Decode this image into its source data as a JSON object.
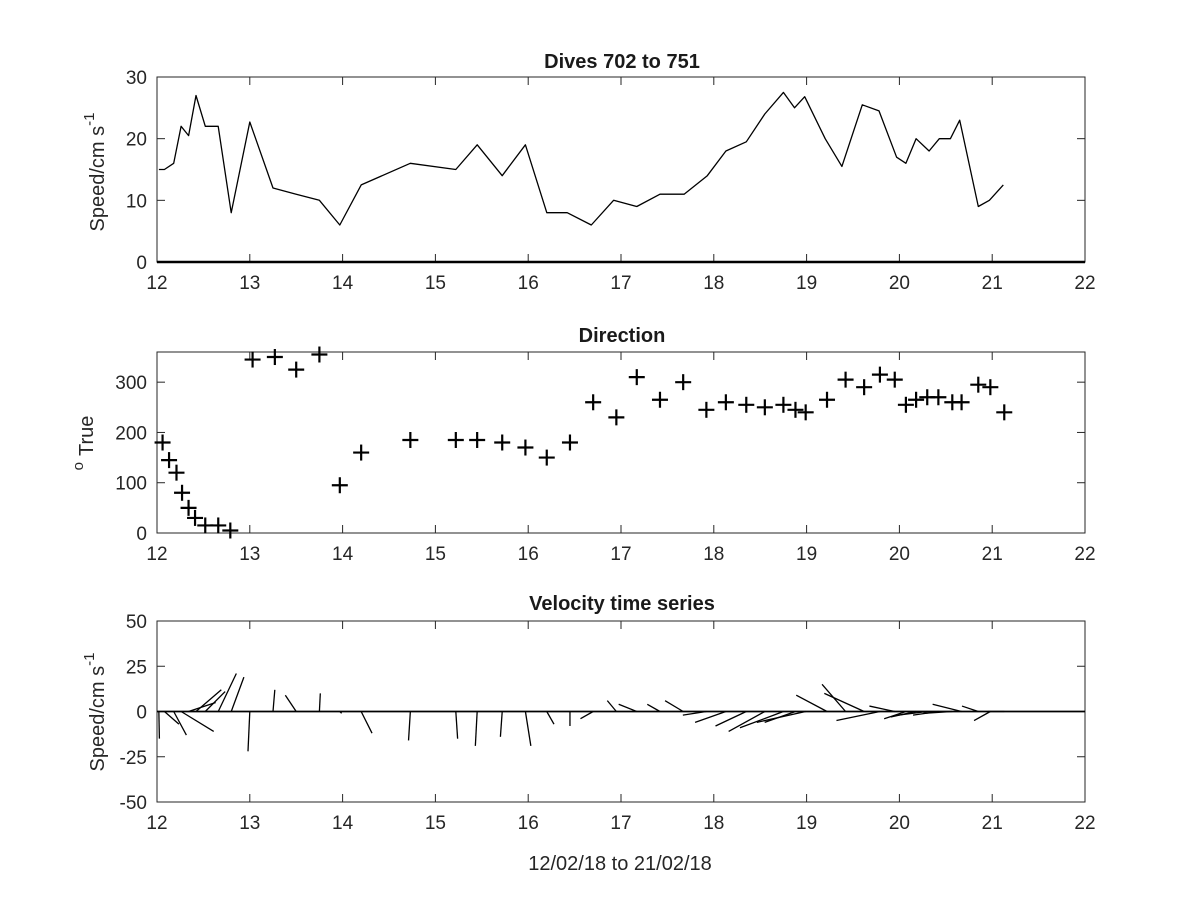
{
  "chart_data": [
    {
      "type": "line",
      "title": "Dives 702 to 751",
      "xlabel": "",
      "ylabel": "Speed/cm s",
      "ylabel_superscript": "-1",
      "xlim": [
        12,
        22
      ],
      "ylim": [
        0,
        30
      ],
      "xticks": [
        "12",
        "13",
        "14",
        "15",
        "16",
        "17",
        "18",
        "19",
        "20",
        "21",
        "22"
      ],
      "yticks": [
        "0",
        "10",
        "20",
        "30"
      ],
      "grid": false,
      "x": [
        12.02,
        12.08,
        12.18,
        12.26,
        12.34,
        12.42,
        12.52,
        12.66,
        12.8,
        13.0,
        13.25,
        13.5,
        13.75,
        13.97,
        14.2,
        14.73,
        15.22,
        15.45,
        15.72,
        15.97,
        16.2,
        16.42,
        16.68,
        16.92,
        17.17,
        17.42,
        17.68,
        17.93,
        18.13,
        18.35,
        18.55,
        18.75,
        18.87,
        18.98,
        19.2,
        19.38,
        19.6,
        19.78,
        19.97,
        20.07,
        20.18,
        20.32,
        20.43,
        20.55,
        20.65,
        20.85,
        20.97,
        21.12
      ],
      "series": [
        {
          "values": [
            15.0,
            15.0,
            16.0,
            22.0,
            20.5,
            27.0,
            22.0,
            22.0,
            8.0,
            22.7,
            12.0,
            11.0,
            10.0,
            6.0,
            12.5,
            16.0,
            15.0,
            19.0,
            14.0,
            19.0,
            8.0,
            8.0,
            6.0,
            10.0,
            9.0,
            11.0,
            11.0,
            14.0,
            18.0,
            19.5,
            24.0,
            27.5,
            25.0,
            26.8,
            20.0,
            15.5,
            25.5,
            24.5,
            17.0,
            16.0,
            20.0,
            18.0,
            20.0,
            20.0,
            23.0,
            9.0,
            10.0,
            12.5
          ]
        }
      ]
    },
    {
      "type": "scatter",
      "title": "Direction",
      "xlabel": "",
      "ylabel": "True",
      "ylabel_prefix_superscript": "o",
      "xlim": [
        12,
        22
      ],
      "ylim": [
        0,
        360
      ],
      "xticks": [
        "12",
        "13",
        "14",
        "15",
        "16",
        "17",
        "18",
        "19",
        "20",
        "21",
        "22"
      ],
      "yticks": [
        "0",
        "100",
        "200",
        "300"
      ],
      "grid": false,
      "marker": "+",
      "x": [
        12.06,
        12.13,
        12.21,
        12.27,
        12.34,
        12.41,
        12.52,
        12.66,
        12.79,
        13.03,
        13.27,
        13.5,
        13.75,
        13.97,
        14.2,
        14.73,
        15.22,
        15.45,
        15.72,
        15.97,
        16.2,
        16.45,
        16.7,
        16.95,
        17.17,
        17.42,
        17.67,
        17.92,
        18.13,
        18.35,
        18.55,
        18.75,
        18.88,
        18.99,
        19.22,
        19.42,
        19.62,
        19.79,
        19.95,
        20.07,
        20.18,
        20.3,
        20.42,
        20.57,
        20.67,
        20.85,
        20.98,
        21.13
      ],
      "y": [
        180,
        145,
        120,
        80,
        50,
        30,
        15,
        15,
        5,
        345,
        350,
        325,
        355,
        95,
        160,
        185,
        185,
        185,
        180,
        170,
        150,
        180,
        260,
        230,
        310,
        265,
        300,
        245,
        260,
        255,
        250,
        255,
        245,
        240,
        265,
        305,
        290,
        315,
        305,
        255,
        265,
        270,
        270,
        260,
        260,
        295,
        290,
        240
      ]
    },
    {
      "type": "quiver",
      "title": "Velocity time series",
      "xlabel": "12/02/18 to 21/02/18",
      "ylabel": "Speed/cm s",
      "ylabel_superscript": "-1",
      "xlim": [
        12,
        22
      ],
      "ylim": [
        -50,
        50
      ],
      "xticks": [
        "12",
        "13",
        "14",
        "15",
        "16",
        "17",
        "18",
        "19",
        "20",
        "21",
        "22"
      ],
      "yticks": [
        "-50",
        "-25",
        "0",
        "25",
        "50"
      ],
      "grid": false,
      "vectors": [
        {
          "x": 12.02,
          "u": 0.3,
          "v": -15
        },
        {
          "x": 12.08,
          "u": 8,
          "v": -7
        },
        {
          "x": 12.18,
          "u": 7,
          "v": -13
        },
        {
          "x": 12.26,
          "u": 18,
          "v": -11
        },
        {
          "x": 12.34,
          "u": 15,
          "v": 5
        },
        {
          "x": 12.42,
          "u": 14,
          "v": 12
        },
        {
          "x": 12.52,
          "u": 11,
          "v": 11
        },
        {
          "x": 12.66,
          "u": 10,
          "v": 21
        },
        {
          "x": 12.8,
          "u": 7,
          "v": 19
        },
        {
          "x": 13.0,
          "u": -1,
          "v": -22
        },
        {
          "x": 13.25,
          "u": 1,
          "v": 12
        },
        {
          "x": 13.5,
          "u": -6,
          "v": 9
        },
        {
          "x": 13.75,
          "u": 0.5,
          "v": 10
        },
        {
          "x": 13.97,
          "u": 1,
          "v": -1
        },
        {
          "x": 14.2,
          "u": 6,
          "v": -12
        },
        {
          "x": 14.73,
          "u": -1,
          "v": -16
        },
        {
          "x": 15.22,
          "u": 1,
          "v": -15
        },
        {
          "x": 15.45,
          "u": -1,
          "v": -19
        },
        {
          "x": 15.72,
          "u": -1,
          "v": -14
        },
        {
          "x": 15.97,
          "u": 3,
          "v": -19
        },
        {
          "x": 16.2,
          "u": 4,
          "v": -7
        },
        {
          "x": 16.45,
          "u": 0,
          "v": -8
        },
        {
          "x": 16.7,
          "u": -7,
          "v": -4
        },
        {
          "x": 16.95,
          "u": -5,
          "v": 6
        },
        {
          "x": 17.17,
          "u": -10,
          "v": 4
        },
        {
          "x": 17.42,
          "u": -7,
          "v": 4
        },
        {
          "x": 17.67,
          "u": -10,
          "v": 6
        },
        {
          "x": 17.92,
          "u": -13,
          "v": -2
        },
        {
          "x": 18.13,
          "u": -17,
          "v": -6
        },
        {
          "x": 18.35,
          "u": -17,
          "v": -8
        },
        {
          "x": 18.55,
          "u": -20,
          "v": -11
        },
        {
          "x": 18.75,
          "u": -24,
          "v": -9
        },
        {
          "x": 18.88,
          "u": -17,
          "v": -6
        },
        {
          "x": 18.99,
          "u": -27,
          "v": -6
        },
        {
          "x": 19.22,
          "u": -17,
          "v": 9
        },
        {
          "x": 19.42,
          "u": -13,
          "v": 15
        },
        {
          "x": 19.62,
          "u": -22,
          "v": 10
        },
        {
          "x": 19.79,
          "u": -24,
          "v": -5
        },
        {
          "x": 19.95,
          "u": -14,
          "v": 3
        },
        {
          "x": 20.07,
          "u": -12,
          "v": -4
        },
        {
          "x": 20.18,
          "u": -14,
          "v": -3
        },
        {
          "x": 20.3,
          "u": -16,
          "v": -2
        },
        {
          "x": 20.42,
          "u": -14,
          "v": -2
        },
        {
          "x": 20.57,
          "u": -16,
          "v": -1
        },
        {
          "x": 20.67,
          "u": -16,
          "v": 4
        },
        {
          "x": 20.85,
          "u": -9,
          "v": 3
        },
        {
          "x": 20.98,
          "u": -9,
          "v": -5
        },
        {
          "x": 21.13,
          "u": -9,
          "v": 0
        }
      ]
    }
  ]
}
